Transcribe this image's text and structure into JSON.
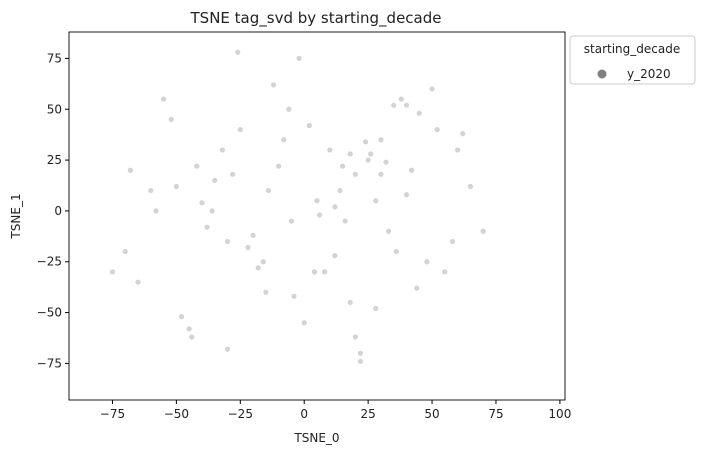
{
  "chart_data": {
    "type": "scatter",
    "title": "TSNE tag_svd by starting_decade",
    "xlabel": "TSNE_0",
    "ylabel": "TSNE_1",
    "xlim": [
      -92,
      102
    ],
    "ylim": [
      -93,
      88
    ],
    "xticks": [
      -75,
      -50,
      -25,
      0,
      25,
      50,
      75,
      100
    ],
    "yticks": [
      -75,
      -50,
      -25,
      0,
      25,
      50,
      75
    ],
    "grid": false,
    "legend": {
      "title": "starting_decade",
      "placement": "outside-right-top",
      "entries": [
        {
          "label": "y_2020",
          "color": "#808080"
        }
      ]
    },
    "series": [
      {
        "name": "y_2020",
        "color": "#808080",
        "opacity": 0.35,
        "x": [
          -42,
          -8,
          35,
          -30,
          18,
          -60,
          45,
          -15,
          5,
          22,
          -45,
          -25,
          60,
          -70,
          30,
          -5,
          12,
          -35,
          50,
          25,
          -20,
          40,
          -55,
          8,
          -12,
          28,
          -38,
          15,
          -28,
          2,
          48,
          -48,
          20,
          38,
          -18,
          65,
          -65,
          10,
          -2,
          33,
          -52,
          18,
          -22,
          42,
          55,
          -32,
          0,
          24,
          -40,
          14,
          -10,
          36,
          70,
          -75,
          6,
          -26,
          28,
          44,
          -58,
          -6,
          16,
          26,
          32,
          -44,
          -14,
          52,
          4,
          -36,
          20,
          62,
          -68,
          12,
          -4,
          40,
          -30,
          30,
          58,
          -50,
          22,
          -16
        ],
        "y": [
          22,
          35,
          52,
          -15,
          28,
          10,
          48,
          -40,
          5,
          -70,
          -58,
          40,
          30,
          -20,
          18,
          -5,
          2,
          15,
          60,
          25,
          -12,
          8,
          55,
          -30,
          62,
          -48,
          -8,
          22,
          18,
          42,
          -25,
          -52,
          -62,
          55,
          -28,
          12,
          -35,
          30,
          75,
          -10,
          45,
          -45,
          -18,
          20,
          -30,
          30,
          -55,
          34,
          4,
          10,
          22,
          -20,
          -10,
          -30,
          -2,
          78,
          5,
          -38,
          0,
          50,
          -5,
          28,
          24,
          -62,
          10,
          40,
          -30,
          0,
          18,
          38,
          20,
          -22,
          -42,
          52,
          -68,
          35,
          -15,
          12,
          -74,
          -25
        ]
      }
    ]
  }
}
